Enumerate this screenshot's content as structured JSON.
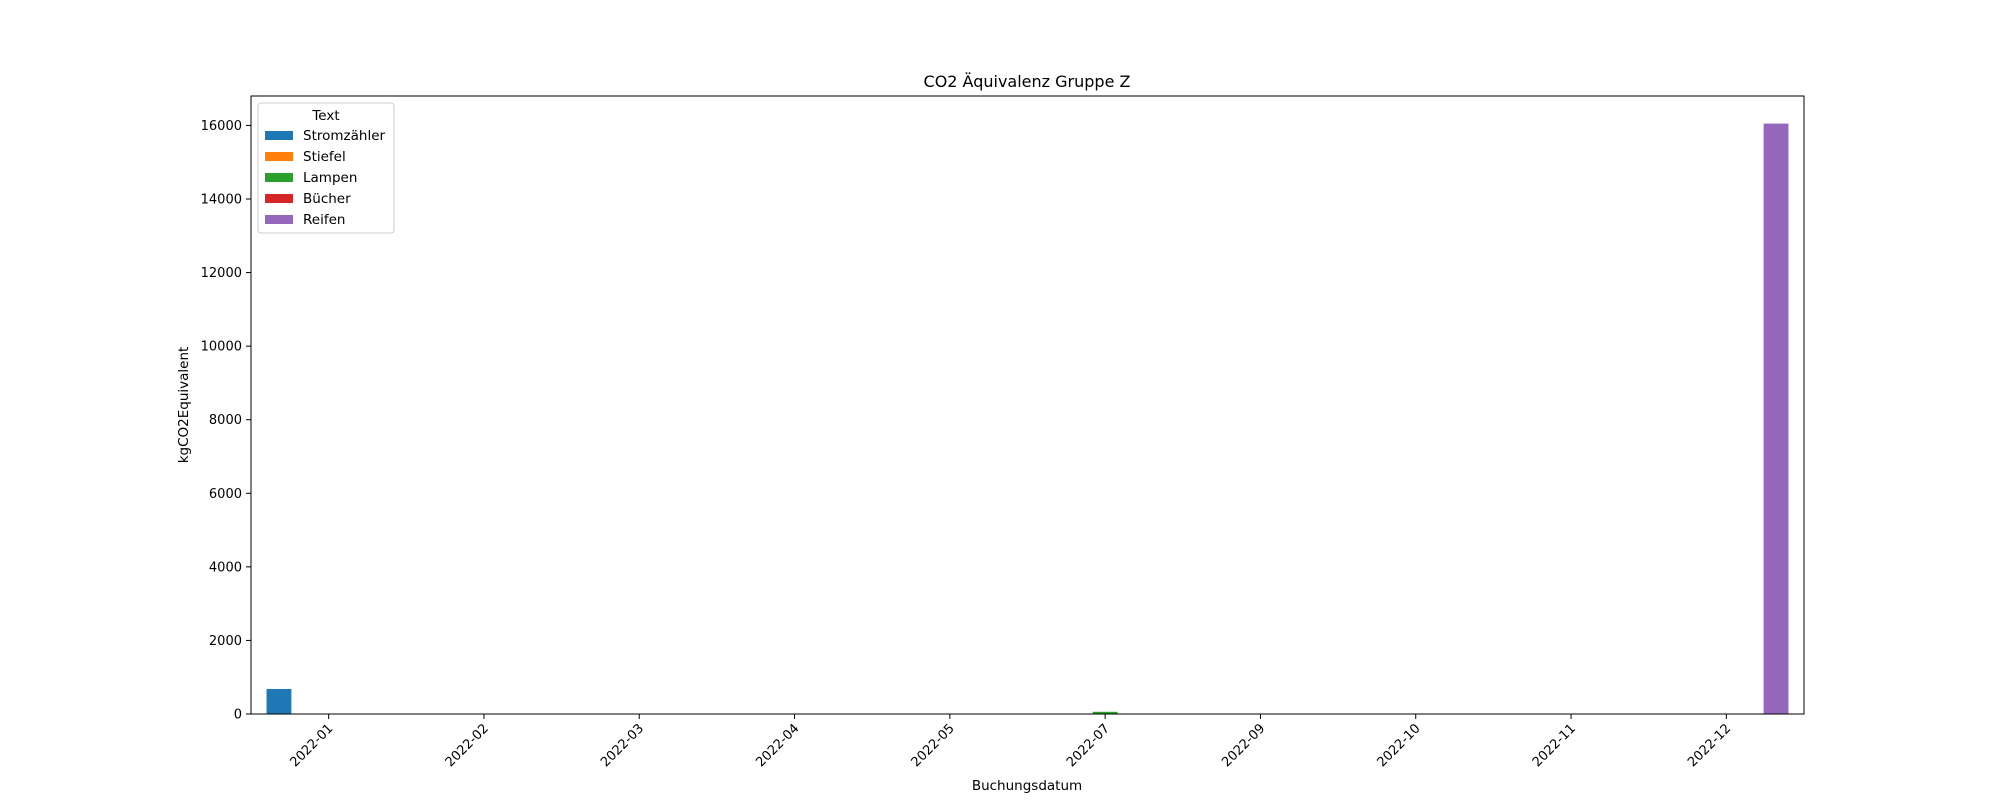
{
  "chart_data": {
    "type": "bar",
    "title": "CO2 Äquivalenz Gruppe Z",
    "xlabel": "Buchungsdatum",
    "ylabel": "kgCO2Equivalent",
    "ylim": [
      0,
      16800
    ],
    "yticks": [
      0,
      2000,
      4000,
      6000,
      8000,
      10000,
      12000,
      14000,
      16000
    ],
    "categories": [
      "2022-01",
      "2022-02",
      "2022-03",
      "2022-04",
      "2022-05",
      "2022-07",
      "2022-09",
      "2022-10",
      "2022-11",
      "2022-12"
    ],
    "legend_title": "Text",
    "legend_position": "upper left",
    "grid": false,
    "series": [
      {
        "name": "Stromzähler",
        "color": "#1f77b4",
        "values": [
          680,
          0,
          0,
          0,
          0,
          0,
          0,
          0,
          0,
          0
        ]
      },
      {
        "name": "Stiefel",
        "color": "#ff7f0e",
        "values": [
          0,
          0,
          0,
          0,
          0,
          0,
          0,
          0,
          0,
          0
        ]
      },
      {
        "name": "Lampen",
        "color": "#2ca02c",
        "values": [
          0,
          0,
          0,
          0,
          0,
          60,
          0,
          0,
          0,
          0
        ]
      },
      {
        "name": "Bücher",
        "color": "#d62728",
        "values": [
          0,
          0,
          0,
          0,
          0,
          0,
          0,
          0,
          0,
          0
        ]
      },
      {
        "name": "Reifen",
        "color": "#9467bd",
        "values": [
          0,
          0,
          0,
          0,
          0,
          0,
          0,
          0,
          0,
          16050
        ]
      }
    ]
  }
}
